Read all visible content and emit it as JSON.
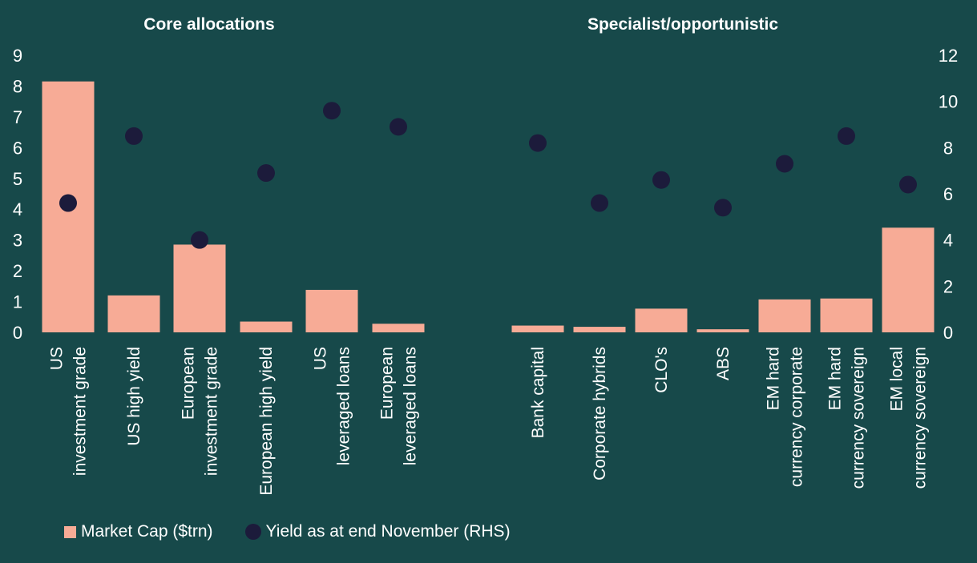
{
  "colors": {
    "background": "#17494a",
    "bar": "#f7ab96",
    "dot": "#1c1b3b",
    "text": "#ffffff"
  },
  "legend": {
    "bar_label": "Market Cap ($trn)",
    "dot_label": "Yield as at end November (RHS)"
  },
  "chart_data": {
    "type": "bar",
    "groups": [
      {
        "title": "Core allocations",
        "start": 0,
        "count": 6
      },
      {
        "title": "Specialist/opportunistic",
        "start": 6,
        "count": 7
      }
    ],
    "categories": [
      [
        "US",
        "investment grade"
      ],
      [
        "US high yield"
      ],
      [
        "European",
        "investment grade"
      ],
      [
        "European high yield"
      ],
      [
        "US",
        "leveraged loans"
      ],
      [
        "European",
        "leveraged loans"
      ],
      [
        "Bank capital"
      ],
      [
        "Corporate hybrids"
      ],
      [
        "CLO's"
      ],
      [
        "ABS"
      ],
      [
        "EM hard",
        "currency corporate"
      ],
      [
        "EM hard",
        "currency sovereign"
      ],
      [
        "EM local",
        "currency sovereign"
      ]
    ],
    "series": [
      {
        "name": "Market Cap ($trn)",
        "type": "bar",
        "axis": "left",
        "values": [
          8.15,
          1.2,
          2.85,
          0.35,
          1.38,
          0.28,
          0.22,
          0.18,
          0.77,
          0.1,
          1.07,
          1.1,
          3.4
        ]
      },
      {
        "name": "Yield as at end November (RHS)",
        "type": "scatter",
        "axis": "right",
        "values": [
          5.6,
          8.5,
          4.0,
          6.9,
          9.6,
          8.9,
          8.2,
          5.6,
          6.6,
          5.4,
          7.3,
          8.5,
          6.4
        ]
      }
    ],
    "left_axis": {
      "min": 0,
      "max": 9,
      "ticks": [
        "0",
        "1",
        "2",
        "3",
        "4",
        "5",
        "6",
        "7",
        "8",
        "9"
      ]
    },
    "right_axis": {
      "min": 0,
      "max": 12,
      "ticks": [
        "0",
        "2",
        "4",
        "6",
        "8",
        "10",
        "12"
      ]
    }
  }
}
